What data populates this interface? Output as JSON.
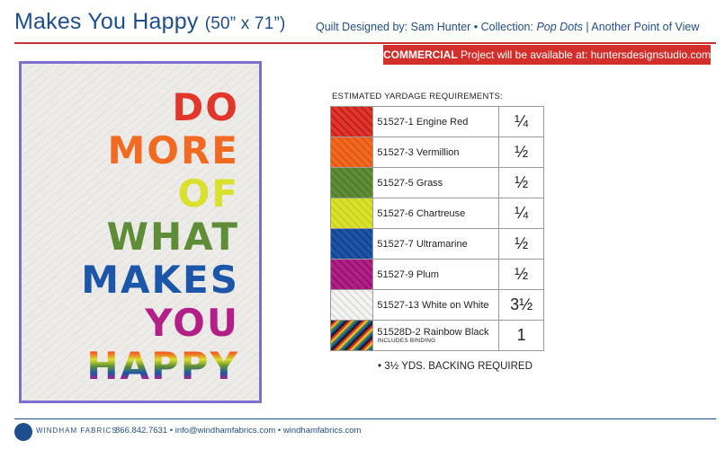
{
  "header": {
    "title": "Makes You Happy",
    "dims": "(50” x 71”)",
    "subtitle_prefix": "Quilt Designed by: Sam Hunter • Collection: ",
    "collection": "Pop Dots",
    "subtitle_suffix": " | Another Point of View"
  },
  "banner": {
    "bold": "COMMERCIAL",
    "text": " Project will be available at: huntersdesignstudio.com"
  },
  "quilt": {
    "lines": [
      "DO",
      "MORE",
      "OF",
      "WHAT",
      "MAKES",
      "YOU",
      "HAPPY"
    ]
  },
  "yardage": {
    "title": "ESTIMATED YARDAGE REQUIREMENTS:",
    "rows": [
      {
        "name": "51527-1 Engine Red",
        "qty": "¼",
        "color": "#e3362b",
        "color2": "#b81f1f"
      },
      {
        "name": "51527-3 Vermillion",
        "qty": "½",
        "color": "#f26a21",
        "color2": "#e05414"
      },
      {
        "name": "51527-5 Grass",
        "qty": "½",
        "color": "#5f8d37",
        "color2": "#4d7a2a"
      },
      {
        "name": "51527-6 Chartreuse",
        "qty": "¼",
        "color": "#d9e02d",
        "color2": "#c8d21a"
      },
      {
        "name": "51527-7 Ultramarine",
        "qty": "½",
        "color": "#1c56a8",
        "color2": "#143f86"
      },
      {
        "name": "51527-9 Plum",
        "qty": "½",
        "color": "#b21f86",
        "color2": "#8e136b"
      },
      {
        "name": "51527-13 White on White",
        "qty": "3½",
        "color": "#f4f4f2",
        "color2": "#dcdcd8"
      },
      {
        "name": "51528D-2 Rainbow Black",
        "note": "INCLUDES BINDING",
        "qty": "1",
        "color": "#222222",
        "color2": "#e3362b"
      }
    ],
    "backing": "• 3½ YDS. BACKING REQUIRED"
  },
  "footer": {
    "logo": "WINDHAM FABRICS",
    "contact": "866.842.7631 • info@windhamfabrics.com • windhamfabrics.com"
  }
}
